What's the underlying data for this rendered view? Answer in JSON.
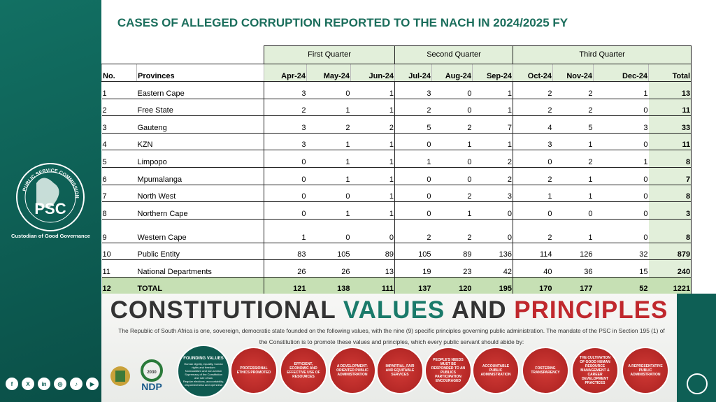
{
  "title": "CASES OF ALLEGED CORRUPTION REPORTED TO THE NACH IN 2024/2025 FY",
  "table": {
    "groups": [
      "First Quarter",
      "Second Quarter",
      "Third Quarter"
    ],
    "columns": [
      "No.",
      "Provinces",
      "Apr-24",
      "May-24",
      "Jun-24",
      "Jul-24",
      "Aug-24",
      "Sep-24",
      "Oct-24",
      "Nov-24",
      "Dec-24",
      "Total"
    ],
    "rows": [
      [
        "1",
        "Eastern Cape",
        3,
        0,
        1,
        3,
        0,
        1,
        2,
        2,
        1,
        13
      ],
      [
        "2",
        "Free State",
        2,
        1,
        1,
        2,
        0,
        1,
        2,
        2,
        0,
        11
      ],
      [
        "3",
        "Gauteng",
        3,
        2,
        2,
        5,
        2,
        7,
        4,
        5,
        3,
        33
      ],
      [
        "4",
        "KZN",
        3,
        1,
        1,
        0,
        1,
        1,
        3,
        1,
        0,
        11
      ],
      [
        "5",
        "Limpopo",
        0,
        1,
        1,
        1,
        0,
        2,
        0,
        2,
        1,
        8
      ],
      [
        "6",
        "Mpumalanga",
        0,
        1,
        1,
        0,
        0,
        2,
        2,
        1,
        0,
        7
      ],
      [
        "7",
        "North West",
        0,
        0,
        1,
        0,
        2,
        3,
        1,
        1,
        0,
        8
      ],
      [
        "8",
        "Northern Cape",
        0,
        1,
        1,
        0,
        1,
        0,
        0,
        0,
        0,
        3
      ],
      [
        "9",
        "Western Cape",
        1,
        0,
        0,
        2,
        2,
        0,
        2,
        1,
        0,
        8
      ],
      [
        "10",
        "Public Entity",
        83,
        105,
        89,
        105,
        89,
        136,
        114,
        126,
        32,
        879
      ],
      [
        "11",
        "National Departments",
        26,
        26,
        13,
        19,
        23,
        42,
        40,
        36,
        15,
        240
      ],
      [
        "12",
        "TOTAL",
        121,
        138,
        111,
        137,
        120,
        195,
        170,
        177,
        52,
        1221
      ]
    ]
  },
  "sidebar": {
    "logo_ring": "PUBLIC SERVICE COMMISSION",
    "logo_text": "PSC",
    "tagline": "Custodian of Good Governance",
    "social": [
      "f",
      "X",
      "in",
      "◎",
      "♪",
      "▶"
    ]
  },
  "banner": {
    "heading": [
      "CONSTITUTIONAL",
      "VALUES",
      "AND",
      "PRINCIPLES"
    ],
    "text": "The Republic of South Africa is one, sovereign, democratic state founded on the following values, with the nine (9) specific principles governing public administration. The mandate of the PSC in Section 195 (1) of the Constitution is to promote these values and principles, which every public servant should abide by:",
    "ndp": "NDP",
    "ndp_year": "2030",
    "founding_title": "FOUNDING VALUES",
    "founding": [
      "Human dignity, equality, human rights and freedom",
      "Nonracialism and non-sexism",
      "Supremacy of the Constitution and rule of law",
      "Regular elections, accountability, responsiveness and openness"
    ],
    "principles": [
      "PROFESSIONAL ETHICS PROMOTED",
      "EFFICIENT, ECONOMIC AND EFFECTIVE USE OF RESOURCES",
      "A DEVELOPMENT-ORIENTED PUBLIC ADMINISTRATION",
      "IMPARTIAL, FAIR AND EQUITABLE SERVICES",
      "PEOPLE'S NEEDS MUST BE RESPONDED TO AN PUBLICS PARTICIPATION ENCOURAGED",
      "ACCOUNTABLE PUBLIC ADMINISTRATION",
      "FOSTERING TRANSPARENCY",
      "THE CULTIVATION OF GOOD HUMAN RESOURCE MANAGEMENT & CAREER DEVELOPMENT PRACTICES",
      "A REPRESENTATIVE PUBLIC ADMINISTRATION"
    ]
  }
}
